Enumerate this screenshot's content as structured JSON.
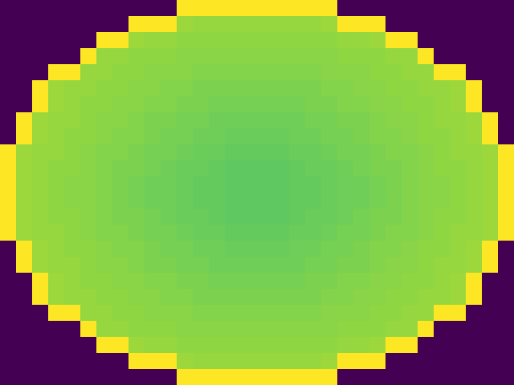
{
  "chart_data": {
    "type": "heatmap",
    "tick_labels": false,
    "zlim": [
      0,
      1
    ],
    "cells": [
      [
        0,
        0,
        0,
        0,
        0,
        0,
        0,
        0,
        0,
        0,
        0,
        1,
        1,
        1,
        1,
        1,
        1,
        1,
        1,
        1,
        1,
        0,
        0,
        0,
        0,
        0,
        0,
        0,
        0,
        0,
        0,
        0
      ],
      [
        0,
        0,
        0,
        0,
        0,
        0,
        0,
        0,
        1,
        1,
        1,
        0.85,
        0.84,
        0.84,
        0.84,
        0.84,
        0.84,
        0.84,
        0.84,
        0.84,
        0.85,
        1,
        1,
        1,
        0,
        0,
        0,
        0,
        0,
        0,
        0,
        0
      ],
      [
        0,
        0,
        0,
        0,
        0,
        0,
        1,
        1,
        0.85,
        0.84,
        0.84,
        0.83,
        0.83,
        0.83,
        0.83,
        0.83,
        0.83,
        0.83,
        0.83,
        0.83,
        0.83,
        0.84,
        0.84,
        0.85,
        1,
        1,
        0,
        0,
        0,
        0,
        0,
        0
      ],
      [
        0,
        0,
        0,
        0,
        0,
        1,
        0.84,
        0.84,
        0.83,
        0.83,
        0.83,
        0.82,
        0.82,
        0.82,
        0.82,
        0.82,
        0.82,
        0.82,
        0.82,
        0.82,
        0.82,
        0.83,
        0.83,
        0.83,
        0.84,
        0.84,
        1,
        0,
        0,
        0,
        0,
        0
      ],
      [
        0,
        0,
        0,
        1,
        1,
        0.84,
        0.84,
        0.83,
        0.83,
        0.82,
        0.82,
        0.82,
        0.81,
        0.81,
        0.81,
        0.81,
        0.81,
        0.81,
        0.81,
        0.81,
        0.82,
        0.82,
        0.82,
        0.83,
        0.83,
        0.84,
        0.84,
        1,
        1,
        0,
        0,
        0
      ],
      [
        0,
        0,
        1,
        0.85,
        0.84,
        0.84,
        0.83,
        0.83,
        0.82,
        0.82,
        0.81,
        0.81,
        0.8,
        0.8,
        0.8,
        0.8,
        0.8,
        0.8,
        0.8,
        0.8,
        0.81,
        0.81,
        0.82,
        0.82,
        0.83,
        0.83,
        0.84,
        0.84,
        0.85,
        1,
        0,
        0
      ],
      [
        0,
        0,
        1,
        0.85,
        0.84,
        0.83,
        0.83,
        0.82,
        0.82,
        0.81,
        0.81,
        0.8,
        0.8,
        0.79,
        0.79,
        0.79,
        0.79,
        0.79,
        0.79,
        0.8,
        0.8,
        0.81,
        0.81,
        0.82,
        0.82,
        0.83,
        0.83,
        0.84,
        0.85,
        1,
        0,
        0
      ],
      [
        0,
        1,
        0.85,
        0.84,
        0.84,
        0.83,
        0.82,
        0.82,
        0.81,
        0.8,
        0.8,
        0.79,
        0.79,
        0.78,
        0.78,
        0.78,
        0.78,
        0.78,
        0.78,
        0.79,
        0.79,
        0.8,
        0.8,
        0.81,
        0.82,
        0.82,
        0.83,
        0.84,
        0.84,
        0.85,
        1,
        0
      ],
      [
        0,
        1,
        0.85,
        0.84,
        0.83,
        0.83,
        0.82,
        0.81,
        0.81,
        0.8,
        0.79,
        0.79,
        0.78,
        0.78,
        0.77,
        0.77,
        0.77,
        0.77,
        0.78,
        0.78,
        0.79,
        0.79,
        0.8,
        0.81,
        0.81,
        0.82,
        0.83,
        0.83,
        0.84,
        0.85,
        1,
        0
      ],
      [
        1,
        0.85,
        0.84,
        0.84,
        0.83,
        0.82,
        0.81,
        0.81,
        0.8,
        0.79,
        0.79,
        0.78,
        0.77,
        0.77,
        0.76,
        0.76,
        0.76,
        0.76,
        0.77,
        0.77,
        0.78,
        0.79,
        0.79,
        0.8,
        0.81,
        0.81,
        0.82,
        0.83,
        0.84,
        0.84,
        0.85,
        1
      ],
      [
        1,
        0.85,
        0.84,
        0.83,
        0.83,
        0.82,
        0.81,
        0.8,
        0.8,
        0.79,
        0.78,
        0.77,
        0.77,
        0.76,
        0.75,
        0.75,
        0.75,
        0.75,
        0.76,
        0.77,
        0.77,
        0.78,
        0.79,
        0.8,
        0.8,
        0.81,
        0.82,
        0.83,
        0.83,
        0.84,
        0.85,
        1
      ],
      [
        1,
        0.85,
        0.84,
        0.83,
        0.82,
        0.82,
        0.81,
        0.8,
        0.79,
        0.78,
        0.78,
        0.77,
        0.76,
        0.76,
        0.75,
        0.75,
        0.75,
        0.75,
        0.76,
        0.76,
        0.77,
        0.78,
        0.78,
        0.79,
        0.8,
        0.81,
        0.82,
        0.82,
        0.83,
        0.84,
        0.85,
        1
      ],
      [
        1,
        0.85,
        0.84,
        0.83,
        0.82,
        0.82,
        0.81,
        0.8,
        0.79,
        0.78,
        0.78,
        0.77,
        0.76,
        0.76,
        0.75,
        0.75,
        0.75,
        0.75,
        0.76,
        0.76,
        0.77,
        0.78,
        0.78,
        0.79,
        0.8,
        0.81,
        0.82,
        0.82,
        0.83,
        0.84,
        0.85,
        1
      ],
      [
        1,
        0.85,
        0.84,
        0.83,
        0.83,
        0.82,
        0.81,
        0.8,
        0.8,
        0.79,
        0.78,
        0.77,
        0.77,
        0.76,
        0.75,
        0.75,
        0.75,
        0.75,
        0.76,
        0.77,
        0.77,
        0.78,
        0.79,
        0.8,
        0.8,
        0.81,
        0.82,
        0.83,
        0.83,
        0.84,
        0.85,
        1
      ],
      [
        1,
        0.85,
        0.84,
        0.84,
        0.83,
        0.82,
        0.81,
        0.81,
        0.8,
        0.79,
        0.79,
        0.78,
        0.77,
        0.77,
        0.76,
        0.76,
        0.76,
        0.76,
        0.77,
        0.77,
        0.78,
        0.79,
        0.79,
        0.8,
        0.81,
        0.81,
        0.82,
        0.83,
        0.84,
        0.84,
        0.85,
        1
      ],
      [
        0,
        1,
        0.85,
        0.84,
        0.83,
        0.83,
        0.82,
        0.81,
        0.81,
        0.8,
        0.79,
        0.79,
        0.78,
        0.78,
        0.77,
        0.77,
        0.77,
        0.77,
        0.78,
        0.78,
        0.79,
        0.79,
        0.8,
        0.81,
        0.81,
        0.82,
        0.83,
        0.83,
        0.84,
        0.85,
        1,
        0
      ],
      [
        0,
        1,
        0.85,
        0.84,
        0.84,
        0.83,
        0.82,
        0.82,
        0.81,
        0.8,
        0.8,
        0.79,
        0.79,
        0.78,
        0.78,
        0.78,
        0.78,
        0.78,
        0.78,
        0.79,
        0.79,
        0.8,
        0.8,
        0.81,
        0.82,
        0.82,
        0.83,
        0.84,
        0.84,
        0.85,
        1,
        0
      ],
      [
        0,
        0,
        1,
        0.85,
        0.84,
        0.83,
        0.83,
        0.82,
        0.82,
        0.81,
        0.81,
        0.8,
        0.8,
        0.79,
        0.79,
        0.79,
        0.79,
        0.79,
        0.79,
        0.8,
        0.8,
        0.81,
        0.81,
        0.82,
        0.82,
        0.83,
        0.83,
        0.84,
        0.85,
        1,
        0,
        0
      ],
      [
        0,
        0,
        1,
        0.85,
        0.84,
        0.84,
        0.83,
        0.83,
        0.82,
        0.82,
        0.81,
        0.81,
        0.8,
        0.8,
        0.8,
        0.8,
        0.8,
        0.8,
        0.8,
        0.8,
        0.81,
        0.81,
        0.82,
        0.82,
        0.83,
        0.83,
        0.84,
        0.84,
        0.85,
        1,
        0,
        0
      ],
      [
        0,
        0,
        0,
        1,
        1,
        0.84,
        0.84,
        0.83,
        0.83,
        0.82,
        0.82,
        0.82,
        0.81,
        0.81,
        0.81,
        0.81,
        0.81,
        0.81,
        0.81,
        0.81,
        0.82,
        0.82,
        0.82,
        0.83,
        0.83,
        0.84,
        0.84,
        1,
        1,
        0,
        0,
        0
      ],
      [
        0,
        0,
        0,
        0,
        0,
        1,
        0.84,
        0.84,
        0.83,
        0.83,
        0.83,
        0.82,
        0.82,
        0.82,
        0.82,
        0.82,
        0.82,
        0.82,
        0.82,
        0.82,
        0.82,
        0.83,
        0.83,
        0.83,
        0.84,
        0.84,
        1,
        0,
        0,
        0,
        0,
        0
      ],
      [
        0,
        0,
        0,
        0,
        0,
        0,
        1,
        1,
        0.85,
        0.84,
        0.84,
        0.83,
        0.83,
        0.83,
        0.83,
        0.83,
        0.83,
        0.83,
        0.83,
        0.83,
        0.83,
        0.84,
        0.84,
        0.85,
        1,
        1,
        0,
        0,
        0,
        0,
        0,
        0
      ],
      [
        0,
        0,
        0,
        0,
        0,
        0,
        0,
        0,
        1,
        1,
        1,
        0.85,
        0.84,
        0.84,
        0.84,
        0.84,
        0.84,
        0.84,
        0.84,
        0.84,
        0.85,
        1,
        1,
        1,
        0,
        0,
        0,
        0,
        0,
        0,
        0,
        0
      ],
      [
        0,
        0,
        0,
        0,
        0,
        0,
        0,
        0,
        0,
        0,
        0,
        1,
        1,
        1,
        1,
        1,
        1,
        1,
        1,
        1,
        1,
        0,
        0,
        0,
        0,
        0,
        0,
        0,
        0,
        0,
        0,
        0
      ]
    ]
  }
}
